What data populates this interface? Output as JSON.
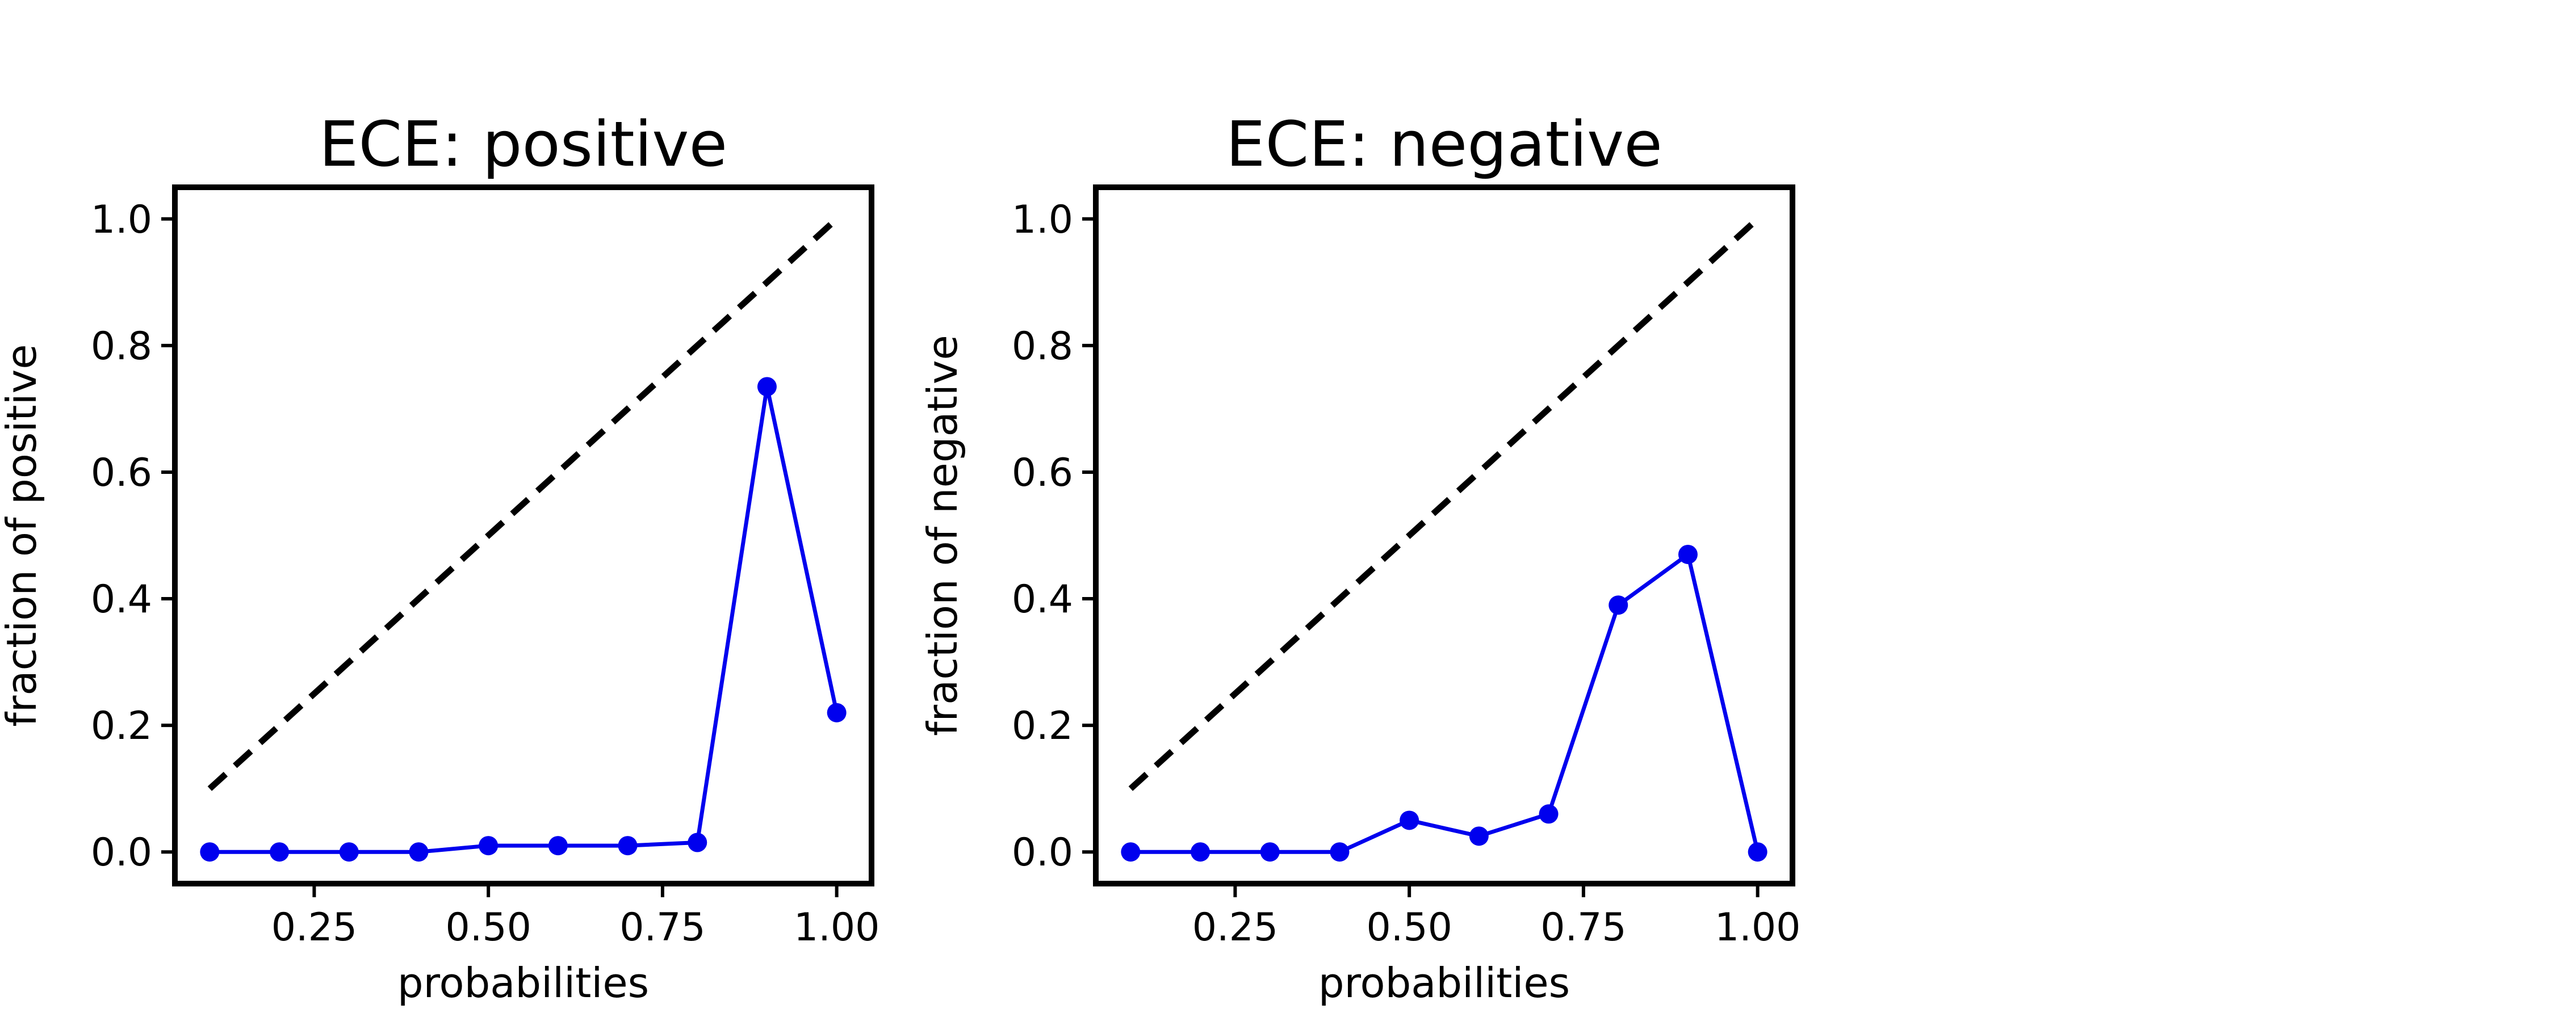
{
  "chart_data": [
    {
      "type": "line",
      "title": "ECE: positive",
      "xlabel": "probabilities",
      "ylabel": "fraction of positive",
      "xlim": [
        0.05,
        1.05
      ],
      "ylim": [
        -0.05,
        1.05
      ],
      "x_ticks": [
        "0.25",
        "0.50",
        "0.75",
        "1.00"
      ],
      "y_ticks": [
        "0.0",
        "0.2",
        "0.4",
        "0.6",
        "0.8",
        "1.0"
      ],
      "grid": false,
      "reference_line": {
        "x": [
          0.1,
          1.0
        ],
        "y": [
          0.1,
          1.0
        ],
        "style": "dashed",
        "color": "#000000"
      },
      "series": [
        {
          "color": "#0000ee",
          "marker": "circle",
          "x": [
            0.1,
            0.2,
            0.3,
            0.4,
            0.5,
            0.6,
            0.7,
            0.8,
            0.9,
            1.0
          ],
          "y": [
            0.0,
            0.0,
            0.0,
            0.0,
            0.01,
            0.01,
            0.01,
            0.015,
            0.735,
            0.22
          ]
        }
      ]
    },
    {
      "type": "line",
      "title": "ECE: negative",
      "xlabel": "probabilities",
      "ylabel": "fraction of negative",
      "xlim": [
        0.05,
        1.05
      ],
      "ylim": [
        -0.05,
        1.05
      ],
      "x_ticks": [
        "0.25",
        "0.50",
        "0.75",
        "1.00"
      ],
      "y_ticks": [
        "0.0",
        "0.2",
        "0.4",
        "0.6",
        "0.8",
        "1.0"
      ],
      "grid": false,
      "reference_line": {
        "x": [
          0.1,
          1.0
        ],
        "y": [
          0.1,
          1.0
        ],
        "style": "dashed",
        "color": "#000000"
      },
      "series": [
        {
          "color": "#0000ee",
          "marker": "circle",
          "x": [
            0.1,
            0.2,
            0.3,
            0.4,
            0.5,
            0.6,
            0.7,
            0.8,
            0.9,
            1.0
          ],
          "y": [
            0.0,
            0.0,
            0.0,
            0.0,
            0.05,
            0.025,
            0.06,
            0.39,
            0.47,
            0.0
          ]
        }
      ]
    }
  ]
}
